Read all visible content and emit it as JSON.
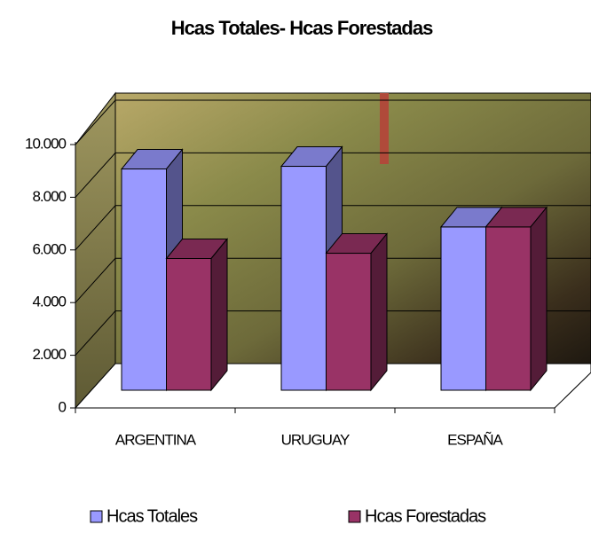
{
  "chart_data": {
    "type": "bar3d",
    "title": "Hcas Totales- Hcas Forestadas",
    "categories": [
      "ARGENTINA",
      "URUGUAY",
      "ESPAÑA"
    ],
    "series": [
      {
        "name": "Hcas Totales",
        "color": "#9999ff",
        "values": [
          8400,
          8500,
          6200
        ]
      },
      {
        "name": "Hcas Forestadas",
        "color": "#993366",
        "values": [
          5000,
          5200,
          6200
        ]
      }
    ],
    "ylim": [
      0,
      10000
    ],
    "yticks": [
      0,
      {
        "value": 2000,
        "label": "2.000"
      },
      {
        "value": 4000,
        "label": "4.000"
      },
      {
        "value": 6000,
        "label": "6.000"
      },
      {
        "value": 8000,
        "label": "8.000"
      },
      {
        "value": 10000,
        "label": "10.000"
      }
    ],
    "grid": true,
    "legend": "bottom"
  }
}
